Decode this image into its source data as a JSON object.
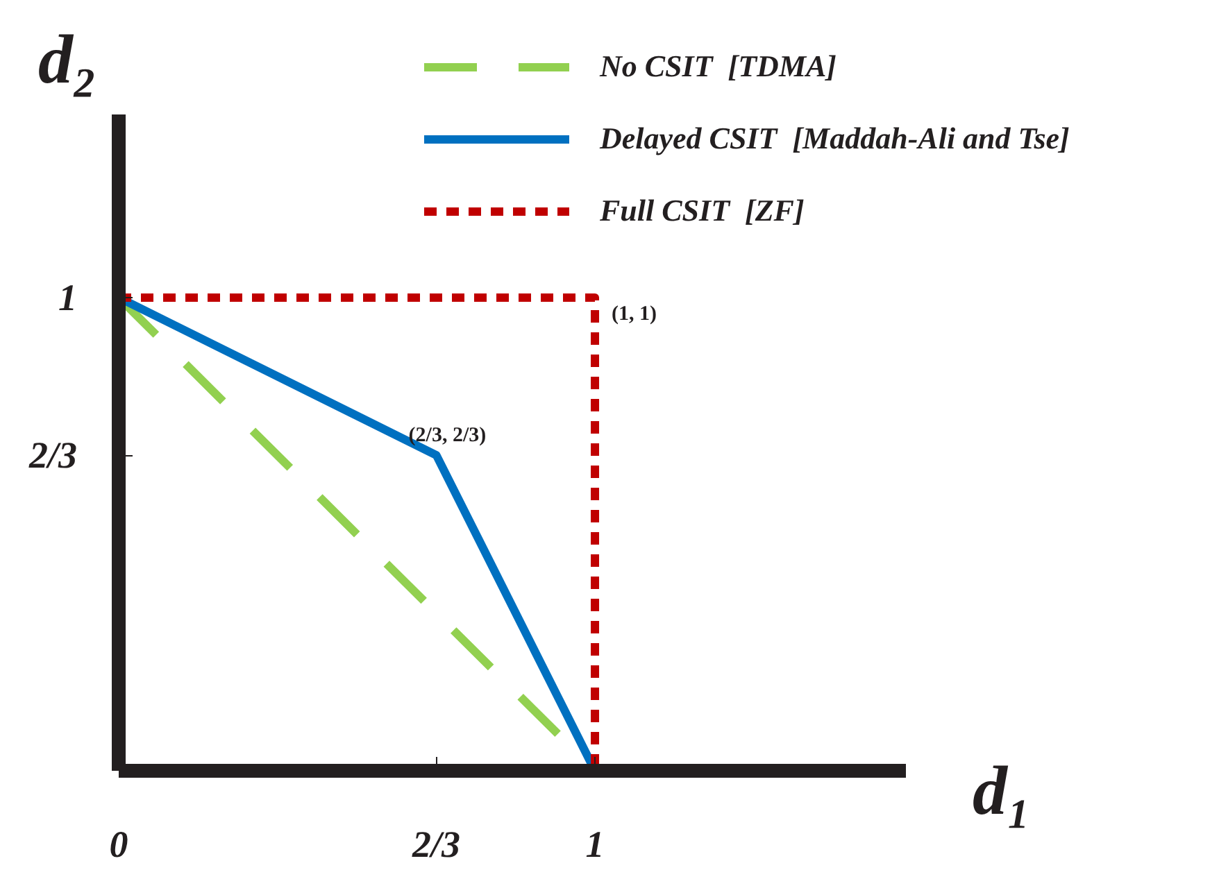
{
  "chart_data": {
    "type": "line",
    "xlabel": "d₁",
    "ylabel": "d₂",
    "xlim": [
      0,
      1.653
    ],
    "ylim": [
      0,
      1.387
    ],
    "xticks": [
      {
        "value": 0,
        "label": "0"
      },
      {
        "value": 0.667,
        "label": "2/3"
      },
      {
        "value": 1,
        "label": "1"
      }
    ],
    "yticks": [
      {
        "value": 0.667,
        "label": "2/3"
      },
      {
        "value": 1,
        "label": "1"
      }
    ],
    "series": [
      {
        "name": "No CSIT  [TDMA]",
        "color": "#92d050",
        "line_style": "dashed",
        "x": [
          0,
          1
        ],
        "values": [
          1,
          0
        ]
      },
      {
        "name": "Delayed CSIT  [Maddah-Ali and Tse]",
        "color": "#0070c0",
        "line_style": "solid",
        "x": [
          0,
          0.667,
          1
        ],
        "values": [
          1,
          0.667,
          0
        ]
      },
      {
        "name": "Full CSIT  [ZF]",
        "color": "#c00000",
        "line_style": "dotted",
        "x": [
          0,
          1,
          1
        ],
        "values": [
          1,
          1,
          0
        ]
      }
    ],
    "annotations": [
      {
        "text": "(1, 1)",
        "x": 1,
        "y": 1
      },
      {
        "text": "(2/3, 2/3)",
        "x": 0.667,
        "y": 0.667
      }
    ],
    "legend": "top right",
    "grid": false
  }
}
